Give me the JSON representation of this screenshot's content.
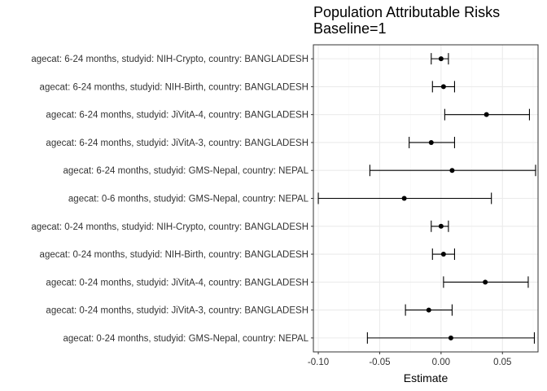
{
  "chart_data": {
    "type": "scatter",
    "title": "Population Attributable Risks",
    "subtitle": "Baseline=1",
    "xlabel": "Estimate",
    "ylabel": "",
    "xlim": [
      -0.104,
      0.079
    ],
    "x_ticks": [
      -0.1,
      -0.05,
      0.0,
      0.05
    ],
    "x_tick_labels": [
      "-0.10",
      "-0.05",
      "0.00",
      "0.05"
    ],
    "grid": true,
    "legend": "none",
    "rows": [
      {
        "label": "agecat: 6-24 months, studyid: NIH-Crypto, country: BANGLADESH",
        "estimate": 0.0,
        "lower": -0.008,
        "upper": 0.006
      },
      {
        "label": "agecat: 6-24 months, studyid: NIH-Birth, country: BANGLADESH",
        "estimate": 0.002,
        "lower": -0.007,
        "upper": 0.011
      },
      {
        "label": "agecat: 6-24 months, studyid: JiVitA-4, country: BANGLADESH",
        "estimate": 0.037,
        "lower": 0.003,
        "upper": 0.072
      },
      {
        "label": "agecat: 6-24 months, studyid: JiVitA-3, country: BANGLADESH",
        "estimate": -0.008,
        "lower": -0.026,
        "upper": 0.011
      },
      {
        "label": "agecat: 6-24 months, studyid: GMS-Nepal, country: NEPAL",
        "estimate": 0.009,
        "lower": -0.058,
        "upper": 0.077
      },
      {
        "label": "agecat: 0-6 months, studyid: GMS-Nepal, country: NEPAL",
        "estimate": -0.03,
        "lower": -0.1,
        "upper": 0.041
      },
      {
        "label": "agecat: 0-24 months, studyid: NIH-Crypto, country: BANGLADESH",
        "estimate": 0.0,
        "lower": -0.008,
        "upper": 0.006
      },
      {
        "label": "agecat: 0-24 months, studyid: NIH-Birth, country: BANGLADESH",
        "estimate": 0.002,
        "lower": -0.007,
        "upper": 0.011
      },
      {
        "label": "agecat: 0-24 months, studyid: JiVitA-4, country: BANGLADESH",
        "estimate": 0.036,
        "lower": 0.002,
        "upper": 0.071
      },
      {
        "label": "agecat: 0-24 months, studyid: JiVitA-3, country: BANGLADESH",
        "estimate": -0.01,
        "lower": -0.029,
        "upper": 0.009
      },
      {
        "label": "agecat: 0-24 months, studyid: GMS-Nepal, country: NEPAL",
        "estimate": 0.008,
        "lower": -0.06,
        "upper": 0.076
      }
    ],
    "colors": {
      "point": "#000000",
      "grid_major": "#ebebeb",
      "grid_minor": "#f5f5f5",
      "panel_border": "#333333"
    }
  }
}
